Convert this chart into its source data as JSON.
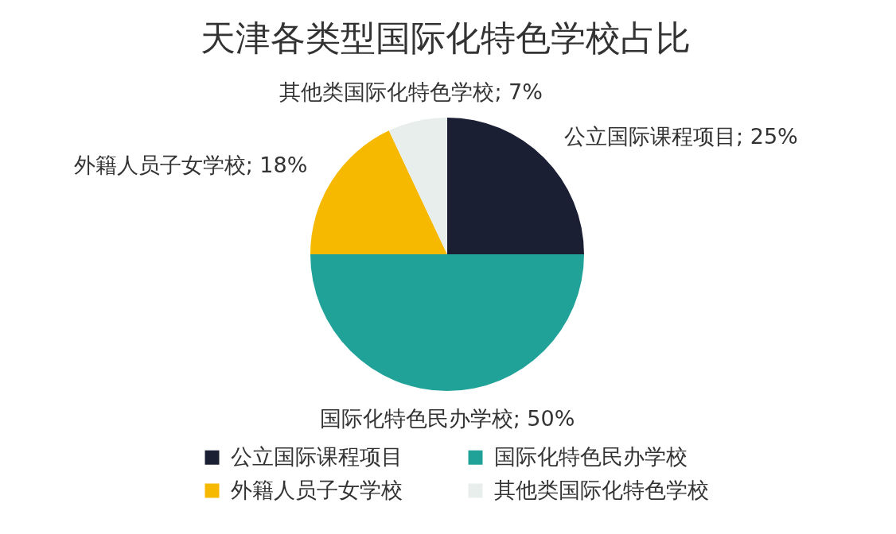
{
  "chart_data": {
    "type": "pie",
    "title": "天津各类型国际化特色学校占比",
    "categories": [
      "公立国际课程项目",
      "国际化特色民办学校",
      "外籍人员子女学校",
      "其他类国际化特色学校"
    ],
    "values": [
      25,
      50,
      18,
      7
    ],
    "colors": [
      "#1b1f33",
      "#21a299",
      "#f6b900",
      "#e8eeeb"
    ],
    "value_labels": [
      "公立国际课程项目; 25%",
      "国际化特色民办学校; 50%",
      "外籍人员子女学校; 18%",
      "其他类国际化特色学校; 7%"
    ],
    "legend": "bottom"
  }
}
